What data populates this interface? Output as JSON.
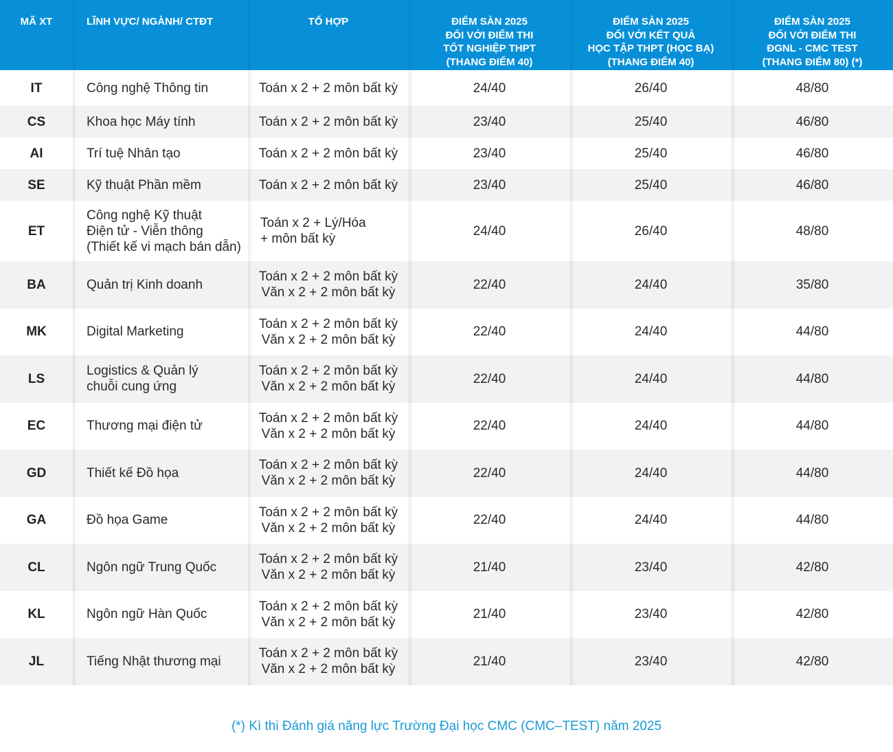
{
  "headers": {
    "code": "MÃ XT",
    "name": "LĨNH VỰC/ NGÀNH/ CTĐT",
    "combo": "TỔ HỢP",
    "thpt": "ĐIỂM SÀN 2025\nĐỐI VỚI ĐIỂM THI\nTỐT NGHIỆP THPT\n(THANG ĐIỂM 40)",
    "hocba": "ĐIỂM SÀN 2025\nĐỐI VỚI KẾT QUẢ\nHỌC TẬP THPT (HỌC BẠ)\n(THANG ĐIỂM 40)",
    "dgnl": "ĐIỂM SÀN 2025\nĐỐI VỚI ĐIỂM THI\nĐGNL - CMC TEST\n(THANG ĐIỂM 80) (*)"
  },
  "rows": [
    {
      "code": "IT",
      "name": "Công nghệ Thông tin",
      "combo": "Toán x 2 + 2 môn bất kỳ",
      "thpt": "24/40",
      "hocba": "26/40",
      "dgnl": "48/80"
    },
    {
      "code": "CS",
      "name": "Khoa học Máy tính",
      "combo": "Toán x 2 + 2 môn bất kỳ",
      "thpt": "23/40",
      "hocba": "25/40",
      "dgnl": "46/80"
    },
    {
      "code": "AI",
      "name": "Trí tuệ Nhân tạo",
      "combo": "Toán x 2 + 2 môn bất kỳ",
      "thpt": "23/40",
      "hocba": "25/40",
      "dgnl": "46/80"
    },
    {
      "code": "SE",
      "name": "Kỹ thuật Phần mềm",
      "combo": "Toán x 2 + 2 môn bất kỳ",
      "thpt": "23/40",
      "hocba": "25/40",
      "dgnl": "46/80"
    },
    {
      "code": "ET",
      "name": "Công nghệ Kỹ thuật\nĐiện tử - Viễn thông\n(Thiết kế vi mạch bán dẫn)",
      "combo": "Toán x 2 + Lý/Hóa\n+ môn bất kỳ",
      "thpt": "24/40",
      "hocba": "26/40",
      "dgnl": "48/80"
    },
    {
      "code": "BA",
      "name": "Quản trị Kinh doanh",
      "combo": "Toán x 2 + 2 môn bất kỳ\nVăn x 2 + 2 môn bất kỳ",
      "thpt": "22/40",
      "hocba": "24/40",
      "dgnl": "35/80"
    },
    {
      "code": "MK",
      "name": "Digital Marketing",
      "combo": "Toán x 2 + 2 môn bất kỳ\nVăn x 2 + 2 môn bất kỳ",
      "thpt": "22/40",
      "hocba": "24/40",
      "dgnl": "44/80"
    },
    {
      "code": "LS",
      "name": "Logistics & Quản lý\nchuỗi cung ứng",
      "combo": "Toán x 2 + 2 môn bất kỳ\nVăn x 2 + 2 môn bất kỳ",
      "thpt": "22/40",
      "hocba": "24/40",
      "dgnl": "44/80"
    },
    {
      "code": "EC",
      "name": "Thương mại điện tử",
      "combo": "Toán x 2 + 2 môn bất kỳ\nVăn x 2 + 2 môn bất kỳ",
      "thpt": "22/40",
      "hocba": "24/40",
      "dgnl": "44/80"
    },
    {
      "code": "GD",
      "name": "Thiết kế Đồ họa",
      "combo": "Toán x 2 + 2 môn bất kỳ\nVăn x 2 + 2 môn bất kỳ",
      "thpt": "22/40",
      "hocba": "24/40",
      "dgnl": "44/80"
    },
    {
      "code": "GA",
      "name": "Đồ họa Game",
      "combo": "Toán x 2 + 2 môn bất kỳ\nVăn x 2 + 2 môn bất kỳ",
      "thpt": "22/40",
      "hocba": "24/40",
      "dgnl": "44/80"
    },
    {
      "code": "CL",
      "name": "Ngôn ngữ Trung Quốc",
      "combo": "Toán x 2 + 2 môn bất kỳ\nVăn x 2 + 2 môn bất kỳ",
      "thpt": "21/40",
      "hocba": "23/40",
      "dgnl": "42/80"
    },
    {
      "code": "KL",
      "name": "Ngôn ngữ Hàn Quốc",
      "combo": "Toán x 2 + 2 môn bất kỳ\nVăn x 2 + 2 môn bất kỳ",
      "thpt": "21/40",
      "hocba": "23/40",
      "dgnl": "42/80"
    },
    {
      "code": "JL",
      "name": "Tiếng Nhật thương mại",
      "combo": "Toán x 2 + 2 môn bất kỳ\nVăn x 2 + 2 môn bất kỳ",
      "thpt": "21/40",
      "hocba": "23/40",
      "dgnl": "42/80"
    }
  ],
  "footnote": "(*) Kì thi Đánh giá năng lực Trường Đại học CMC (CMC–TEST) năm 2025"
}
